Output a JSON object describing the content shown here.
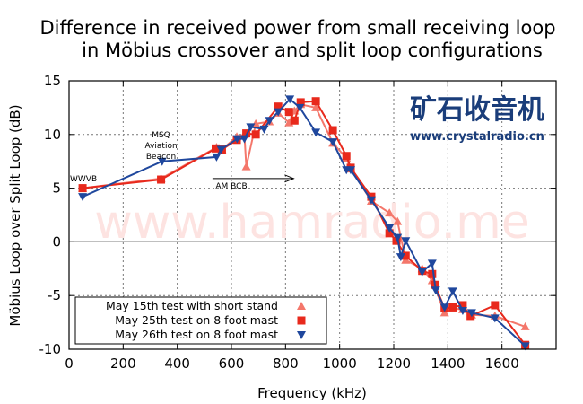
{
  "chart_data": {
    "type": "line",
    "title_lines": [
      "Difference in received power from small receiving loop",
      "in Möbius crossover and split loop configurations"
    ],
    "xlabel": "Frequency (kHz)",
    "ylabel": "Möbius Loop over Split Loop (dB)",
    "xlim": [
      0,
      1800
    ],
    "ylim": [
      -10,
      15
    ],
    "xticks": [
      0,
      200,
      400,
      600,
      800,
      1000,
      1200,
      1400,
      1600
    ],
    "yticks": [
      -10,
      -5,
      0,
      5,
      10,
      15
    ],
    "grid": true,
    "legend_position": "bottom-left",
    "series": [
      {
        "name": "May 15th test with short stand",
        "color": "#f4776b",
        "marker": "triangle-up",
        "x": [
          50,
          340,
          545,
          565,
          620,
          648,
          655,
          690,
          740,
          773,
          813,
          833,
          856,
          912,
          975,
          1025,
          1041,
          1117,
          1184,
          1214,
          1244,
          1305,
          1342,
          1388,
          1418,
          1455,
          1488,
          1574,
          1686
        ],
        "y": [
          5.0,
          5.9,
          8.8,
          8.6,
          9.8,
          10.0,
          7.0,
          11.0,
          11.2,
          12.0,
          11.1,
          12.2,
          12.8,
          12.5,
          9.2,
          7.8,
          6.8,
          3.8,
          2.7,
          1.9,
          -1.7,
          -2.5,
          -3.6,
          -6.6,
          -6.2,
          -6.3,
          -6.8,
          -6.9,
          -7.9
        ]
      },
      {
        "name": "May 25th test on 8 foot mast",
        "color": "#e8291c",
        "marker": "square",
        "x": [
          50,
          340,
          542,
          565,
          620,
          655,
          690,
          773,
          813,
          833,
          856,
          912,
          975,
          1025,
          1041,
          1117,
          1184,
          1210,
          1244,
          1305,
          1342,
          1352,
          1388,
          1418,
          1455,
          1484,
          1574,
          1686
        ],
        "y": [
          5.0,
          5.8,
          8.7,
          8.6,
          9.5,
          10.1,
          10.0,
          12.6,
          12.1,
          11.3,
          13.0,
          13.1,
          10.4,
          8.0,
          6.9,
          4.2,
          0.8,
          0.1,
          -1.3,
          -2.7,
          -3.0,
          -4.0,
          -6.2,
          -6.1,
          -5.9,
          -6.9,
          -5.9,
          -9.6
        ]
      },
      {
        "name": "May 26th test on 8 foot mast",
        "color": "#1f479d",
        "marker": "triangle-down",
        "x": [
          50,
          344,
          545,
          562,
          621,
          648,
          671,
          721,
          741,
          773,
          816,
          853,
          912,
          975,
          1025,
          1041,
          1117,
          1184,
          1214,
          1226,
          1244,
          1305,
          1342,
          1355,
          1388,
          1418,
          1455,
          1488,
          1574,
          1686
        ],
        "y": [
          4.2,
          7.5,
          7.9,
          8.6,
          9.6,
          9.6,
          10.7,
          10.5,
          11.3,
          12.1,
          13.3,
          12.5,
          10.2,
          9.3,
          6.7,
          6.7,
          3.9,
          1.3,
          0.4,
          -1.4,
          0.1,
          -2.8,
          -2.0,
          -4.5,
          -6.1,
          -4.6,
          -6.4,
          -6.6,
          -7.1,
          -9.7
        ]
      }
    ],
    "annotations": [
      {
        "text": "WWVB",
        "x": 50,
        "y": 5.9
      },
      {
        "text_lines": [
          "MSQ",
          "Aviation",
          "Beacon"
        ],
        "x": 340,
        "y": 9.5
      },
      {
        "text": "AM BCB",
        "x": 600,
        "y": 5.2,
        "arrow_from": 530,
        "arrow_to": 830,
        "arrow_y": 5.9
      }
    ]
  },
  "watermark": "www.hamradio.me",
  "logo": {
    "chinese": "矿石收音机",
    "url": "www.crystalradio.cn"
  }
}
